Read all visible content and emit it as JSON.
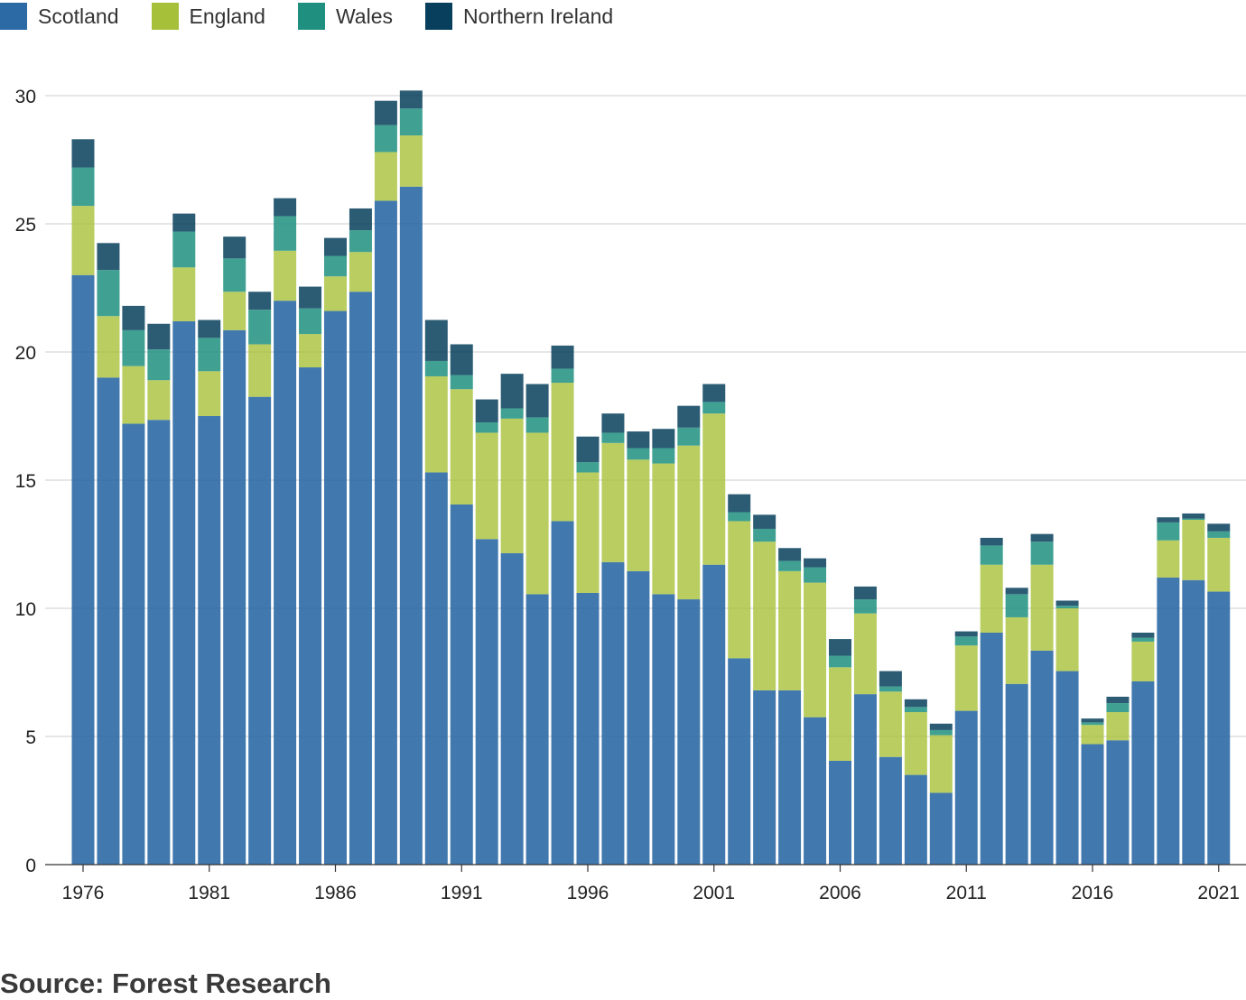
{
  "legend": [
    {
      "name": "Scotland",
      "color": "#2c6aa6"
    },
    {
      "name": "England",
      "color": "#a7c03a"
    },
    {
      "name": "Wales",
      "color": "#1f9080"
    },
    {
      "name": "Northern Ireland",
      "color": "#073f5c"
    }
  ],
  "source": "Source: Forest Research",
  "chart_data": {
    "type": "bar",
    "stacked": true,
    "ylim": [
      0,
      30
    ],
    "yticks": [
      0,
      5,
      10,
      15,
      20,
      25,
      30
    ],
    "xticks": [
      "1976",
      "1981",
      "1986",
      "1991",
      "1996",
      "2001",
      "2006",
      "2011",
      "2016",
      "2021"
    ],
    "grid": true,
    "legend_position": "top-left",
    "categories": [
      "1976",
      "1977",
      "1978",
      "1979",
      "1980",
      "1981",
      "1982",
      "1983",
      "1984",
      "1985",
      "1986",
      "1987",
      "1988",
      "1989",
      "1990",
      "1991",
      "1992",
      "1993",
      "1994",
      "1995",
      "1996",
      "1997",
      "1998",
      "1999",
      "2000",
      "2001",
      "2002",
      "2003",
      "2004",
      "2005",
      "2006",
      "2007",
      "2008",
      "2009",
      "2010",
      "2011",
      "2012",
      "2013",
      "2014",
      "2015",
      "2016",
      "2017",
      "2018",
      "2019",
      "2020",
      "2021"
    ],
    "series": [
      {
        "name": "Scotland",
        "color": "#2c6aa6",
        "opacity": 0.9,
        "values": [
          23.0,
          19.0,
          17.2,
          17.35,
          21.2,
          17.5,
          20.85,
          18.25,
          22.0,
          19.4,
          21.6,
          22.35,
          25.9,
          26.45,
          15.3,
          14.05,
          12.7,
          12.15,
          10.55,
          13.4,
          10.6,
          11.8,
          11.45,
          10.55,
          10.35,
          11.7,
          8.05,
          6.8,
          6.8,
          5.75,
          4.05,
          6.65,
          4.2,
          3.5,
          2.8,
          6.0,
          9.05,
          7.05,
          8.35,
          7.55,
          4.7,
          4.85,
          7.15,
          11.2,
          11.1,
          10.65
        ]
      },
      {
        "name": "England",
        "color": "#a7c03a",
        "opacity": 0.8,
        "values": [
          2.7,
          2.4,
          2.25,
          1.55,
          2.1,
          1.75,
          1.5,
          2.05,
          1.95,
          1.3,
          1.35,
          1.55,
          1.9,
          2.0,
          3.75,
          4.5,
          4.15,
          5.25,
          6.3,
          5.4,
          4.7,
          4.65,
          4.35,
          5.1,
          6.0,
          5.9,
          5.35,
          5.8,
          4.65,
          5.25,
          3.65,
          3.15,
          2.55,
          2.45,
          2.25,
          2.55,
          2.65,
          2.6,
          3.35,
          2.45,
          0.75,
          1.1,
          1.55,
          1.45,
          2.35,
          2.1
        ]
      },
      {
        "name": "Wales",
        "color": "#1f9080",
        "opacity": 0.85,
        "values": [
          1.5,
          1.8,
          1.4,
          1.2,
          1.4,
          1.3,
          1.3,
          1.35,
          1.35,
          1.0,
          0.8,
          0.85,
          1.05,
          1.05,
          0.6,
          0.55,
          0.4,
          0.4,
          0.6,
          0.55,
          0.4,
          0.4,
          0.45,
          0.6,
          0.7,
          0.45,
          0.35,
          0.5,
          0.4,
          0.6,
          0.45,
          0.55,
          0.2,
          0.2,
          0.2,
          0.35,
          0.75,
          0.9,
          0.9,
          0.1,
          0.1,
          0.35,
          0.15,
          0.7,
          0.05,
          0.25
        ]
      },
      {
        "name": "Northern Ireland",
        "color": "#073f5c",
        "opacity": 0.85,
        "values": [
          1.1,
          1.05,
          0.95,
          1.0,
          0.7,
          0.7,
          0.85,
          0.7,
          0.7,
          0.85,
          0.7,
          0.85,
          0.95,
          0.7,
          1.6,
          1.2,
          0.9,
          1.35,
          1.3,
          0.9,
          1.0,
          0.75,
          0.65,
          0.75,
          0.85,
          0.7,
          0.7,
          0.55,
          0.5,
          0.35,
          0.65,
          0.5,
          0.6,
          0.3,
          0.25,
          0.2,
          0.3,
          0.25,
          0.3,
          0.2,
          0.15,
          0.25,
          0.2,
          0.2,
          0.2,
          0.3
        ]
      }
    ]
  }
}
